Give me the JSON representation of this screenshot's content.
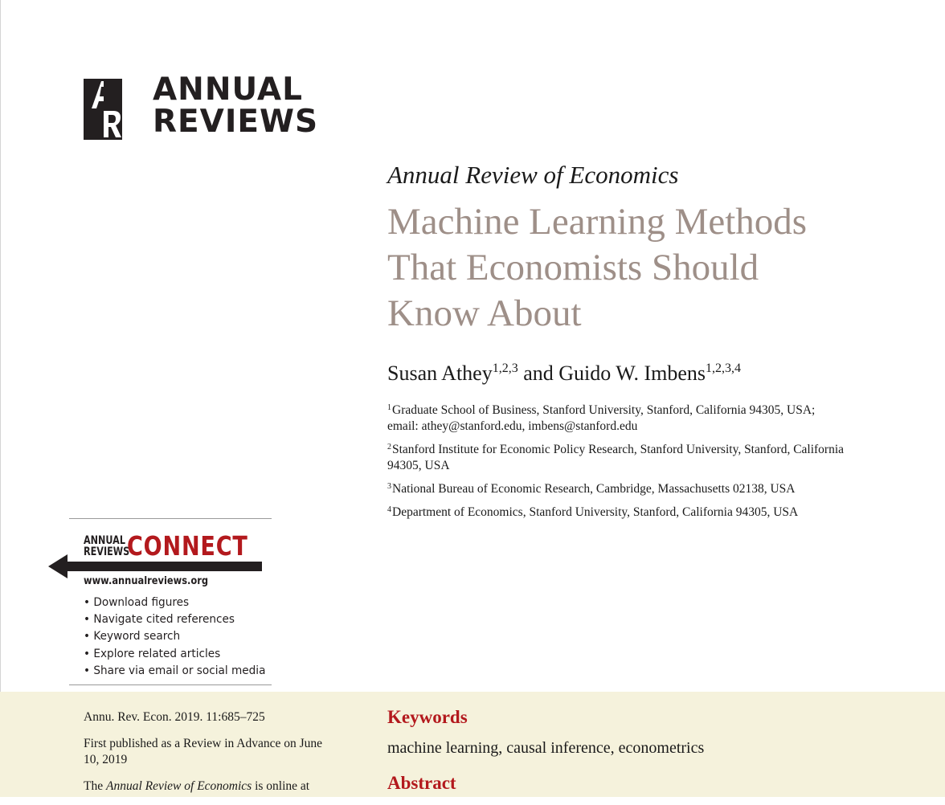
{
  "publisher": {
    "logo_line1": "ANNUAL",
    "logo_line2": "REVIEWS",
    "logo_mark_letters": "AR"
  },
  "journal": "Annual Review of Economics",
  "title_lines": [
    "Machine Learning Methods",
    "That Economists Should",
    "Know About"
  ],
  "authors": {
    "author1": "Susan Athey",
    "author1_sup": "1,2,3",
    "conjunction": "and",
    "author2": "Guido W. Imbens",
    "author2_sup": "1,2,3,4"
  },
  "affiliations": [
    {
      "num": "1",
      "text": "Graduate School of Business, Stanford University, Stanford, California 94305, USA; email: athey@stanford.edu, imbens@stanford.edu"
    },
    {
      "num": "2",
      "text": "Stanford Institute for Economic Policy Research, Stanford University, Stanford, California 94305, USA"
    },
    {
      "num": "3",
      "text": "National Bureau of Economic Research, Cambridge, Massachusetts 02138, USA"
    },
    {
      "num": "4",
      "text": "Department of Economics, Stanford University, Stanford, California 94305, USA"
    }
  ],
  "connect": {
    "small_line1": "ANNUAL",
    "small_line2": "REVIEWS",
    "big": "CONNECT",
    "url": "www.annualreviews.org",
    "items": [
      "• Download figures",
      "• Navigate cited references",
      "• Keyword search",
      "• Explore related articles",
      "• Share via email or social media"
    ]
  },
  "citation": {
    "ref": "Annu. Rev. Econ. 2019. 11:685–725",
    "published": "First published as a Review in Advance on June 10, 2019",
    "online_pre": "The ",
    "online_journal": "Annual Review of Economics",
    "online_post": " is online at"
  },
  "keywords": {
    "heading": "Keywords",
    "text": "machine learning, causal inference, econometrics"
  },
  "abstract": {
    "heading": "Abstract"
  },
  "colors": {
    "title": "#9e8f88",
    "accent_red": "#b3191d",
    "band": "#f5f2dc"
  }
}
